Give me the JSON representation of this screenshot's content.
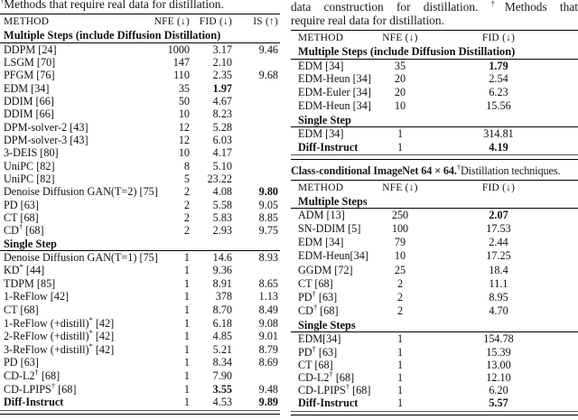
{
  "left": {
    "caption": {
      "sup": "†",
      "text": "Methods that require real data for distillation."
    },
    "table": {
      "headers": [
        "METHOD",
        "NFE (↓)",
        "FID (↓)",
        "IS (↑)"
      ],
      "sections": [
        {
          "title": "Multiple Steps (include Diffusion Distillation)",
          "rows": [
            {
              "m": "DDPM",
              "ref": " [24]",
              "v": [
                "1000",
                "3.17",
                "9.46"
              ]
            },
            {
              "m": "LSGM",
              "ref": " [70]",
              "v": [
                "147",
                "2.10",
                ""
              ]
            },
            {
              "m": "PFGM",
              "ref": " [76]",
              "v": [
                "110",
                "2.35",
                "9.68"
              ]
            },
            {
              "m": "EDM",
              "ref": " [34]",
              "v": [
                "35",
                "1.97",
                ""
              ],
              "vb": [
                0,
                1,
                0
              ]
            },
            {
              "m": "DDIM",
              "ref": " [66]",
              "v": [
                "50",
                "4.67",
                ""
              ]
            },
            {
              "m": "DDIM",
              "ref": " [66]",
              "v": [
                "10",
                "8.23",
                ""
              ]
            },
            {
              "m": "DPM-solver-2",
              "ref": " [43]",
              "v": [
                "12",
                "5.28",
                ""
              ]
            },
            {
              "m": "DPM-solver-3",
              "ref": " [43]",
              "v": [
                "12",
                "6.03",
                ""
              ]
            },
            {
              "m": "3-DEIS",
              "ref": " [80]",
              "v": [
                "10",
                "4.17",
                ""
              ]
            },
            {
              "m": "UniPC",
              "ref": " [82]",
              "v": [
                "8",
                "5.10",
                ""
              ]
            },
            {
              "m": "UniPC",
              "ref": " [82]",
              "v": [
                "5",
                "23.22",
                ""
              ]
            },
            {
              "m": "Denoise Diffusion GAN(T=2)",
              "ref": " [75]",
              "v": [
                "2",
                "4.08",
                "9.80"
              ],
              "vb": [
                0,
                0,
                1
              ]
            },
            {
              "m": "PD",
              "ref": " [63]",
              "v": [
                "2",
                "5.58",
                "9.05"
              ]
            },
            {
              "m": "CT",
              "ref": " [68]",
              "v": [
                "2",
                "5.83",
                "8.85"
              ]
            },
            {
              "m": "CD",
              "sup": "†",
              "ref": " [68]",
              "v": [
                "2",
                "2.93",
                "9.75"
              ]
            }
          ]
        },
        {
          "title": "Single Step",
          "rows": [
            {
              "m": "Denoise Diffusion GAN(T=1)",
              "ref": " [75]",
              "v": [
                "1",
                "14.6",
                "8.93"
              ]
            },
            {
              "m": "KD",
              "sup": "*",
              "ref": " [44]",
              "v": [
                "1",
                "9.36",
                ""
              ]
            },
            {
              "m": "TDPM",
              "ref": " [85]",
              "v": [
                "1",
                "8.91",
                "8.65"
              ]
            },
            {
              "m": "1-ReFlow",
              "ref": " [42]",
              "v": [
                "1",
                "378",
                "1.13"
              ]
            },
            {
              "m": "CT",
              "ref": " [68]",
              "v": [
                "1",
                "8.70",
                "8.49"
              ]
            },
            {
              "m": "1-ReFlow (+distill)",
              "sup": "*",
              "ref": " [42]",
              "v": [
                "1",
                "6.18",
                "9.08"
              ]
            },
            {
              "m": "2-ReFlow (+distill)",
              "sup": "*",
              "ref": " [42]",
              "v": [
                "1",
                "4.85",
                "9.01"
              ]
            },
            {
              "m": "3-ReFlow (+distill)",
              "sup": "*",
              "ref": " [42]",
              "v": [
                "1",
                "5.21",
                "8.79"
              ]
            },
            {
              "m": "PD",
              "ref": " [63]",
              "v": [
                "1",
                "8.34",
                "8.69"
              ]
            },
            {
              "m": "CD-L2",
              "sup": "†",
              "ref": " [68]",
              "v": [
                "1",
                "7.90",
                ""
              ]
            },
            {
              "m": "CD-LPIPS",
              "sup": "†",
              "ref": " [68]",
              "v": [
                "1",
                "3.55",
                "9.48"
              ],
              "vb": [
                0,
                1,
                0
              ]
            },
            {
              "m": "Diff-Instruct",
              "mb": 1,
              "v": [
                "1",
                "4.53",
                "9.89"
              ],
              "vb": [
                0,
                0,
                1
              ]
            }
          ]
        }
      ]
    }
  },
  "right": {
    "caption_top": {
      "line1_pre": "data construction for distillation. ",
      "line1_sup": "†",
      "line1_post": "Methods that",
      "line2": "require real data for distillation."
    },
    "table1": {
      "headers": [
        "METHOD",
        "NFE (↓)",
        "FID (↓)"
      ],
      "sections": [
        {
          "title": "Multiple Steps (include Diffusion Distillation)",
          "rows": [
            {
              "m": "EDM",
              "ref": " [34]",
              "v": [
                "35",
                "1.79"
              ],
              "vb": [
                0,
                1
              ]
            },
            {
              "m": "EDM-Heun",
              "ref": " [34]",
              "v": [
                "20",
                "2.54"
              ]
            },
            {
              "m": "EDM-Euler",
              "ref": " [34]",
              "v": [
                "20",
                "6.23"
              ]
            },
            {
              "m": "EDM-Heun",
              "ref": " [34]",
              "v": [
                "10",
                "15.56"
              ]
            }
          ]
        },
        {
          "title": "Single Step",
          "rows": [
            {
              "m": "EDM",
              "ref": " [34]",
              "v": [
                "1",
                "314.81"
              ]
            },
            {
              "m": "Diff-Instruct",
              "mb": 1,
              "v": [
                "1",
                "4.19"
              ],
              "vb": [
                0,
                1
              ]
            }
          ]
        }
      ]
    },
    "caption_mid": {
      "bold": "Class-conditional ImageNet 64 × 64.",
      "sup": "†",
      "rest": "Distillation techniques."
    },
    "table2": {
      "headers": [
        "METHOD",
        "NFE (↓)",
        "FID (↓)"
      ],
      "sections": [
        {
          "title": "Multiple Steps",
          "rows": [
            {
              "m": "ADM",
              "ref": " [13]",
              "v": [
                "250",
                "2.07"
              ],
              "vb": [
                0,
                1
              ]
            },
            {
              "m": "SN-DDIM",
              "ref": " [5]",
              "v": [
                "100",
                "17.53"
              ]
            },
            {
              "m": "EDM",
              "ref": " [34]",
              "v": [
                "79",
                "2.44"
              ]
            },
            {
              "m": "EDM-Heun",
              "ref": "[34]",
              "v": [
                "10",
                "17.25"
              ]
            },
            {
              "m": "GGDM",
              "ref": " [72]",
              "v": [
                "25",
                "18.4"
              ]
            },
            {
              "m": "CT",
              "ref": " [68]",
              "v": [
                "2",
                "11.1"
              ]
            },
            {
              "m": "PD",
              "sup": "†",
              "ref": " [63]",
              "v": [
                "2",
                "8.95"
              ]
            },
            {
              "m": "CD",
              "sup": "†",
              "ref": " [68]",
              "v": [
                "2",
                "4.70"
              ]
            }
          ]
        },
        {
          "title": "Single Steps",
          "rows": [
            {
              "m": "EDM",
              "ref": "[34]",
              "v": [
                "1",
                "154.78"
              ]
            },
            {
              "m": "PD",
              "sup": "†",
              "ref": " [63]",
              "v": [
                "1",
                "15.39"
              ]
            },
            {
              "m": "CT",
              "ref": " [68]",
              "v": [
                "1",
                "13.00"
              ]
            },
            {
              "m": "CD-L2",
              "sup": "†",
              "ref": " [68]",
              "v": [
                "1",
                "12.10"
              ]
            },
            {
              "m": "CD-LPIPS",
              "sup": "†",
              "ref": " [68]",
              "v": [
                "1",
                "6.20"
              ]
            },
            {
              "m": "Diff-Instruct",
              "mb": 1,
              "v": [
                "1",
                "5.57"
              ],
              "vb": [
                0,
                1
              ]
            }
          ]
        }
      ]
    }
  }
}
